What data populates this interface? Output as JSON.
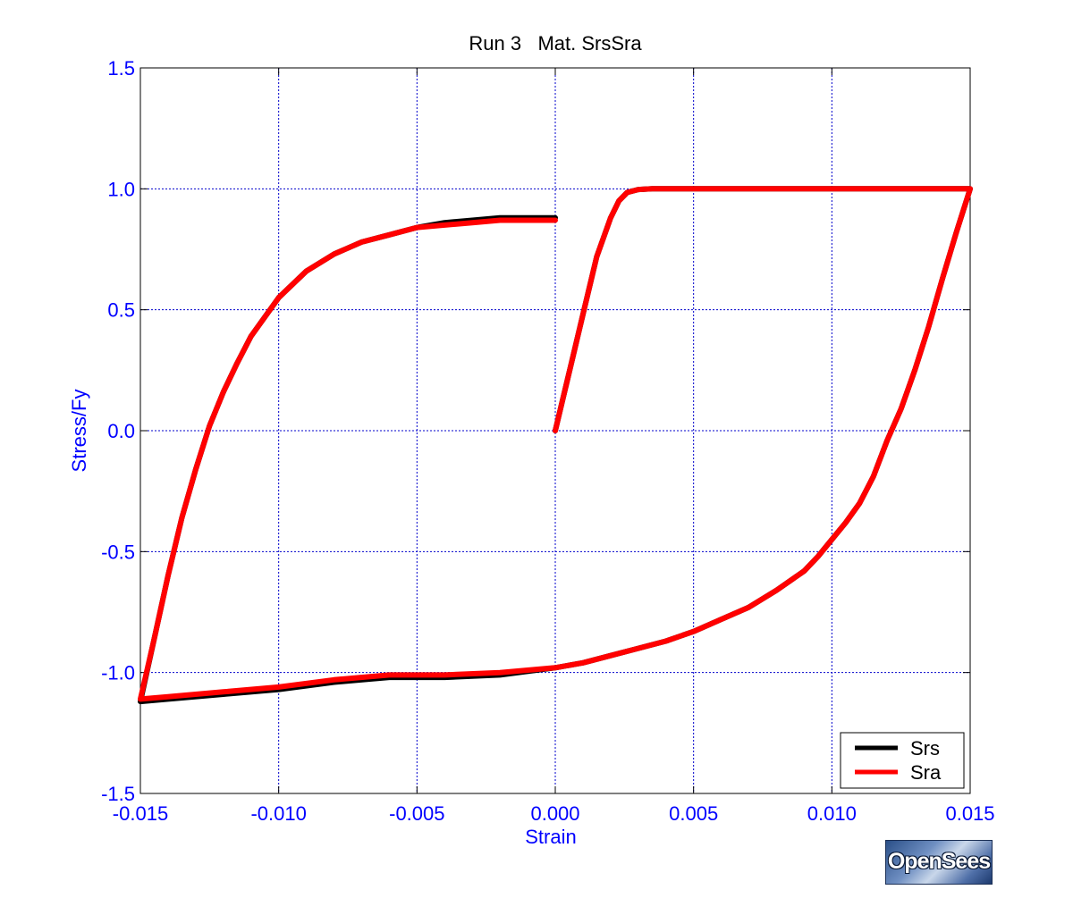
{
  "colors": {
    "axis_text": "#0000ff",
    "grid": "#0000cc",
    "frame": "#000000",
    "srs": "#000000",
    "sra": "#ff0000"
  },
  "logo": {
    "text": "OpenSees"
  },
  "chart_data": {
    "type": "line",
    "title": "Run 3   Mat. SrsSra",
    "xlabel": "Strain",
    "ylabel": "Stress/Fy",
    "xlim": [
      -0.015,
      0.015
    ],
    "ylim": [
      -1.5,
      1.5
    ],
    "xticks": [
      -0.015,
      -0.01,
      -0.005,
      0.0,
      0.005,
      0.01,
      0.015
    ],
    "xtick_labels": [
      "-0.015",
      "-0.010",
      "-0.005",
      "0.000",
      "0.005",
      "0.010",
      "0.015"
    ],
    "yticks": [
      1.5,
      1.0,
      0.5,
      0.0,
      -0.5,
      -1.0,
      -1.5
    ],
    "ytick_labels": [
      "1.5",
      "1.0",
      "0.5",
      "0.0",
      "-0.5",
      "-1.0",
      "-1.5"
    ],
    "grid": true,
    "legend_position": "bottom-right",
    "series": [
      {
        "name": "Srs",
        "color": "#000000",
        "x": [
          0.0,
          0.0005,
          0.001,
          0.0015,
          0.002,
          0.0023,
          0.0026,
          0.003,
          0.0035,
          0.006,
          0.009,
          0.012,
          0.015,
          0.0145,
          0.014,
          0.0135,
          0.013,
          0.0125,
          0.012,
          0.0115,
          0.011,
          0.0105,
          0.01,
          0.0095,
          0.009,
          0.008,
          0.007,
          0.006,
          0.005,
          0.004,
          0.003,
          0.002,
          0.001,
          0.0,
          -0.002,
          -0.004,
          -0.006,
          -0.008,
          -0.01,
          -0.012,
          -0.014,
          -0.015,
          -0.0145,
          -0.014,
          -0.0135,
          -0.013,
          -0.0125,
          -0.012,
          -0.0115,
          -0.011,
          -0.0105,
          -0.01,
          -0.009,
          -0.008,
          -0.007,
          -0.006,
          -0.005,
          -0.004,
          -0.003,
          -0.002,
          -0.001,
          0.0
        ],
        "y": [
          0.0,
          0.24,
          0.48,
          0.72,
          0.88,
          0.95,
          0.985,
          0.997,
          1.0,
          1.0,
          1.0,
          1.0,
          1.0,
          0.82,
          0.63,
          0.43,
          0.25,
          0.09,
          -0.04,
          -0.19,
          -0.3,
          -0.38,
          -0.45,
          -0.52,
          -0.58,
          -0.66,
          -0.73,
          -0.78,
          -0.83,
          -0.87,
          -0.9,
          -0.93,
          -0.96,
          -0.98,
          -1.01,
          -1.02,
          -1.02,
          -1.04,
          -1.07,
          -1.09,
          -1.11,
          -1.12,
          -0.86,
          -0.6,
          -0.36,
          -0.16,
          0.02,
          0.16,
          0.28,
          0.39,
          0.47,
          0.55,
          0.66,
          0.73,
          0.78,
          0.81,
          0.84,
          0.86,
          0.87,
          0.88,
          0.88,
          0.88
        ]
      },
      {
        "name": "Sra",
        "color": "#ff0000",
        "x": [
          0.0,
          0.0005,
          0.001,
          0.0015,
          0.002,
          0.0023,
          0.0026,
          0.003,
          0.0035,
          0.006,
          0.009,
          0.012,
          0.015,
          0.0145,
          0.014,
          0.0135,
          0.013,
          0.0125,
          0.012,
          0.0115,
          0.011,
          0.0105,
          0.01,
          0.0095,
          0.009,
          0.008,
          0.007,
          0.006,
          0.005,
          0.004,
          0.003,
          0.002,
          0.001,
          0.0,
          -0.002,
          -0.004,
          -0.006,
          -0.008,
          -0.01,
          -0.012,
          -0.014,
          -0.015,
          -0.0145,
          -0.014,
          -0.0135,
          -0.013,
          -0.0125,
          -0.012,
          -0.0115,
          -0.011,
          -0.0105,
          -0.01,
          -0.009,
          -0.008,
          -0.007,
          -0.006,
          -0.005,
          -0.004,
          -0.003,
          -0.002,
          -0.001,
          0.0
        ],
        "y": [
          0.0,
          0.24,
          0.48,
          0.72,
          0.88,
          0.95,
          0.985,
          0.997,
          1.0,
          1.0,
          1.0,
          1.0,
          1.0,
          0.82,
          0.63,
          0.43,
          0.25,
          0.09,
          -0.04,
          -0.19,
          -0.3,
          -0.38,
          -0.45,
          -0.52,
          -0.58,
          -0.66,
          -0.73,
          -0.78,
          -0.83,
          -0.87,
          -0.9,
          -0.93,
          -0.96,
          -0.98,
          -1.0,
          -1.01,
          -1.01,
          -1.03,
          -1.06,
          -1.08,
          -1.1,
          -1.11,
          -0.86,
          -0.6,
          -0.36,
          -0.16,
          0.02,
          0.16,
          0.28,
          0.39,
          0.47,
          0.55,
          0.66,
          0.73,
          0.78,
          0.81,
          0.84,
          0.85,
          0.86,
          0.87,
          0.87,
          0.87
        ]
      }
    ]
  }
}
